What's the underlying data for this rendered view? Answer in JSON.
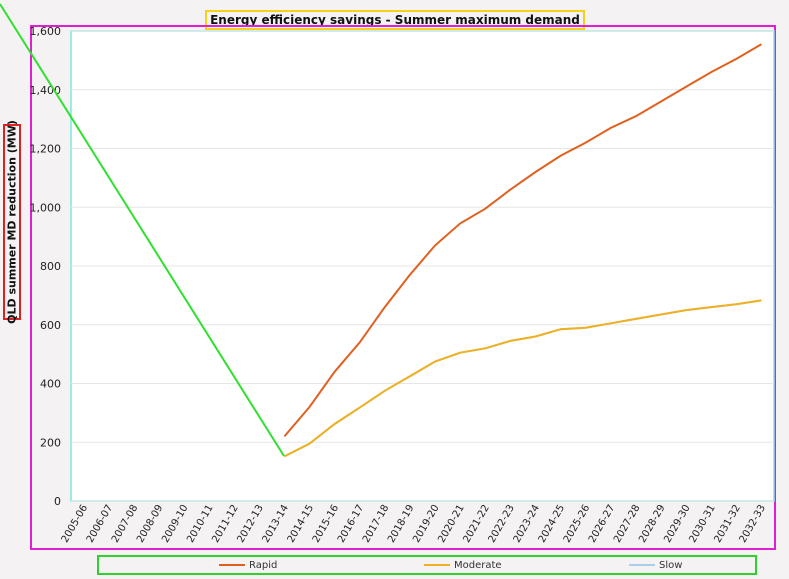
{
  "chart_data": {
    "type": "line",
    "title": "Energy efficiency savings - Summer maximum demand - QLD",
    "xlabel": "",
    "ylabel": "QLD summer MD reduction (MW)",
    "ylim": [
      0,
      1600
    ],
    "yticks": [
      "0",
      "200",
      "400",
      "600",
      "800",
      "1,000",
      "1,200",
      "1,400",
      "1,600"
    ],
    "categories": [
      "2005-06",
      "2006-07",
      "2007-08",
      "2008-09",
      "2009-10",
      "2010-11",
      "2011-12",
      "2012-13",
      "2013-14",
      "2014-15",
      "2015-16",
      "2016-17",
      "2017-18",
      "2018-19",
      "2019-20",
      "2020-21",
      "2021-22",
      "2022-23",
      "2023-24",
      "2024-25",
      "2025-26",
      "2026-27",
      "2027-28",
      "2028-29",
      "2029-30",
      "2030-31",
      "2031-32",
      "2032-33"
    ],
    "grid": true,
    "legend": "bottom",
    "series": [
      {
        "name": "Rapid",
        "color": "#e06020",
        "values": [
          null,
          null,
          null,
          null,
          null,
          null,
          null,
          null,
          220,
          320,
          440,
          540,
          660,
          770,
          870,
          945,
          995,
          1060,
          1120,
          1175,
          1220,
          1270,
          1310,
          1360,
          1410,
          1460,
          1505,
          1555
        ]
      },
      {
        "name": "Moderate",
        "color": "#f0b020",
        "values": [
          null,
          null,
          null,
          null,
          null,
          null,
          null,
          null,
          152,
          195,
          262,
          318,
          375,
          425,
          475,
          505,
          520,
          545,
          560,
          585,
          590,
          605,
          620,
          635,
          650,
          660,
          670,
          683
        ]
      },
      {
        "name": "Slow",
        "color": "#a8d0e8",
        "values": [
          null,
          null,
          null,
          null,
          null,
          null,
          null,
          null,
          152,
          195,
          262,
          318,
          375,
          425,
          475,
          505,
          520,
          545,
          560,
          585,
          590,
          605,
          620,
          635,
          650,
          660,
          670,
          683
        ]
      }
    ]
  }
}
